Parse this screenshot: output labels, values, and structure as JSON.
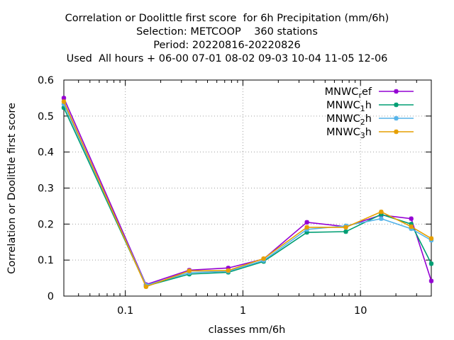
{
  "chart_data": {
    "type": "line",
    "title_lines": [
      "Correlation or Doolittle first score  for 6h Precipitation (mm/6h)",
      "Selection: METCOOP    360 stations",
      "Period: 20220816-20220826",
      "Used  All hours + 06-00 07-01 08-02 09-03 10-04 11-05 12-06"
    ],
    "xlabel": "classes mm/6h",
    "ylabel": "Correlation or Doolittle first score",
    "x_scale": "log",
    "xlim": [
      0.03,
      40
    ],
    "ylim": [
      0,
      0.6
    ],
    "x_ticks": [
      {
        "value": 0.1,
        "label": "0.1"
      },
      {
        "value": 1,
        "label": "1"
      },
      {
        "value": 10,
        "label": "10"
      }
    ],
    "y_ticks": [
      {
        "value": 0,
        "label": "0"
      },
      {
        "value": 0.1,
        "label": "0.1"
      },
      {
        "value": 0.2,
        "label": "0.2"
      },
      {
        "value": 0.3,
        "label": "0.3"
      },
      {
        "value": 0.4,
        "label": "0.4"
      },
      {
        "value": 0.5,
        "label": "0.5"
      },
      {
        "value": 0.6,
        "label": "0.6"
      }
    ],
    "grid": true,
    "legend_position": "top-right",
    "x": [
      0.03,
      0.15,
      0.35,
      0.75,
      1.5,
      3.5,
      7.5,
      15,
      27,
      40
    ],
    "series": [
      {
        "name_main": "MNWC",
        "name_sub": "r",
        "name_rest": "ef",
        "color": "#9400d3",
        "values": [
          0.55,
          0.032,
          0.072,
          0.078,
          0.103,
          0.205,
          0.193,
          0.225,
          0.215,
          0.042
        ]
      },
      {
        "name_main": "MNWC",
        "name_sub": "1",
        "name_rest": "h",
        "color": "#009e73",
        "values": [
          0.523,
          0.028,
          0.061,
          0.066,
          0.096,
          0.177,
          0.179,
          0.227,
          0.2,
          0.09
        ]
      },
      {
        "name_main": "MNWC",
        "name_sub": "2",
        "name_rest": "h",
        "color": "#56b4e9",
        "values": [
          0.533,
          0.03,
          0.065,
          0.069,
          0.099,
          0.185,
          0.195,
          0.215,
          0.187,
          0.155
        ]
      },
      {
        "name_main": "MNWC",
        "name_sub": "3",
        "name_rest": "h",
        "color": "#e69f00",
        "values": [
          0.54,
          0.026,
          0.07,
          0.071,
          0.104,
          0.191,
          0.191,
          0.234,
          0.193,
          0.16
        ]
      }
    ]
  }
}
